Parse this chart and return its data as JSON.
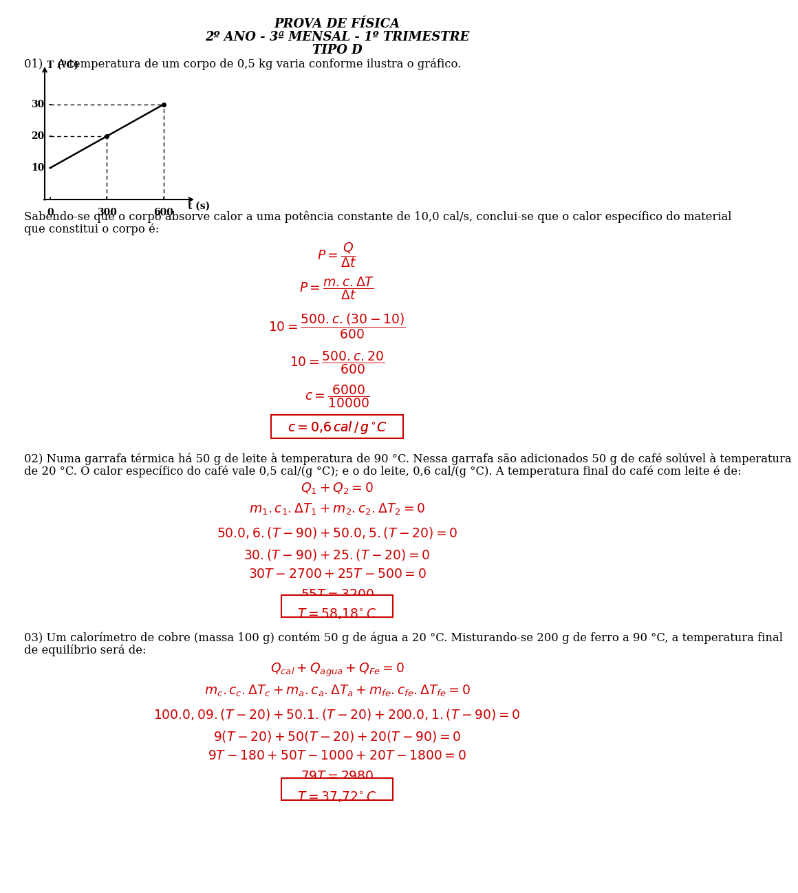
{
  "title_line1": "PROVA DE FÍSICA",
  "title_line2": "2º ANO - 3ª MENSAL - 1º TRIMESTRE",
  "title_line3": "TIPO D",
  "bg_color": "#ffffff",
  "text_color": "#000000",
  "red_color": "#cc0000",
  "q01_text1": "01)    A temperatura de um corpo de 0,5 kg varia conforme ilustra o gráfico.",
  "q01_text2": "Sabendo-se que o corpo absorve calor a uma potência constante de 10,0 cal/s, conclui-se que o calor específico do material",
  "q01_text3": "que constitui o corpo é:",
  "q02_text1": "02) Numa garrafa térmica há 50 g de leite à temperatura de 90 °C. Nessa garrafa são adicionados 50 g de café solúvel à temperatura",
  "q02_text2": "de 20 °C. O calor específico do café vale 0,5 cal/(g °C); e o do leite, 0,6 cal/(g °C). A temperatura final do café com leite é de:",
  "q03_text1": "03) Um calorímetro de cobre (massa 100 g) contém 50 g de água a 20 °C. Misturando-se 200 g de ferro a 90 °C, a temperatura final",
  "q03_text2": "de equilíbrio será de:"
}
